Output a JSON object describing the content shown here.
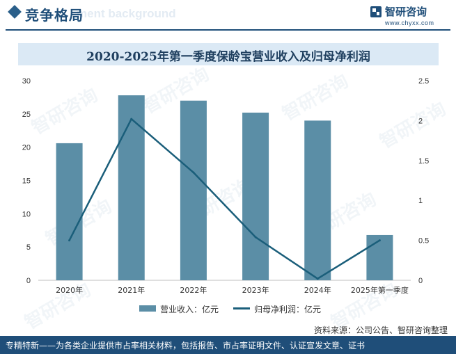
{
  "header": {
    "section_title": "竞争格局",
    "watermark_text": "ment background",
    "logo_name": "智研咨询",
    "logo_url": "www.chyxx.com"
  },
  "watermark": "智研咨询",
  "colors": {
    "bar": "#5b8ea6",
    "line": "#1a5e7a",
    "brand": "#1f4e79",
    "title_band": "#dbe9f5"
  },
  "chart_data": {
    "type": "bar",
    "title": "2020-2025年第一季度保龄宝营业收入及归母净利润",
    "categories": [
      "2020年",
      "2021年",
      "2022年",
      "2023年",
      "2024年",
      "2025年第一季度"
    ],
    "series": [
      {
        "name": "营业收入：亿元",
        "type": "bar",
        "axis": "left",
        "values": [
          20.6,
          27.8,
          27.0,
          25.2,
          24.0,
          6.8
        ]
      },
      {
        "name": "归母净利润：亿元",
        "type": "line",
        "axis": "right",
        "values": [
          0.5,
          2.02,
          1.35,
          0.54,
          0.02,
          0.5
        ]
      }
    ],
    "y_left": {
      "min": 0,
      "max": 30,
      "ticks": [
        "0",
        "5",
        "10",
        "15",
        "20",
        "25",
        "30"
      ]
    },
    "y_right": {
      "min": 0,
      "max": 2.5,
      "ticks": [
        "0",
        "0.5",
        "1",
        "1.5",
        "2",
        "2.5"
      ]
    },
    "grid": false,
    "legend_position": "bottom"
  },
  "legend": {
    "bar_label": "营业收入：亿元",
    "line_label": "归母净利润：亿元"
  },
  "source": "资料来源：公司公告、智研咨询整理",
  "footer": "专精特新——为各类企业提供市占率相关材料，包括报告、市占率证明文件、认证宣发文章、证书"
}
